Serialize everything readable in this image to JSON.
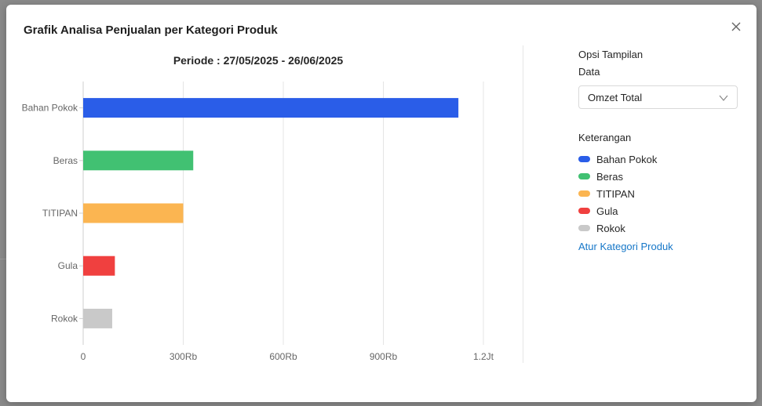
{
  "modal": {
    "title": "Grafik Analisa Penjualan per Kategori Produk"
  },
  "chart_data": {
    "type": "bar",
    "orientation": "horizontal",
    "title": "Periode : 27/05/2025 - 26/06/2025",
    "categories": [
      "Bahan Pokok",
      "Beras",
      "TITIPAN",
      "Gula",
      "Rokok"
    ],
    "values": [
      1125000,
      330000,
      300000,
      95000,
      87000
    ],
    "colors": [
      "#2a5de8",
      "#41c172",
      "#fbb551",
      "#f0403f",
      "#c9c9c9"
    ],
    "xlim": [
      0,
      1200000
    ],
    "xticks": [
      0,
      300000,
      600000,
      900000,
      1200000
    ],
    "xtick_labels": [
      "0",
      "300Rb",
      "600Rb",
      "900Rb",
      "1.2Jt"
    ],
    "grid": "vertical",
    "xlabel": "",
    "ylabel": ""
  },
  "side": {
    "options_title": "Opsi Tampilan",
    "data_label": "Data",
    "select_value": "Omzet Total",
    "legend_title": "Keterangan",
    "legend": [
      {
        "label": "Bahan Pokok",
        "color": "#2a5de8"
      },
      {
        "label": "Beras",
        "color": "#41c172"
      },
      {
        "label": "TITIPAN",
        "color": "#fbb551"
      },
      {
        "label": "Gula",
        "color": "#f0403f"
      },
      {
        "label": "Rokok",
        "color": "#c9c9c9"
      }
    ],
    "link_label": "Atur Kategori Produk"
  },
  "icons": {
    "close": "close-icon",
    "chevron": "chevron-down-icon"
  }
}
